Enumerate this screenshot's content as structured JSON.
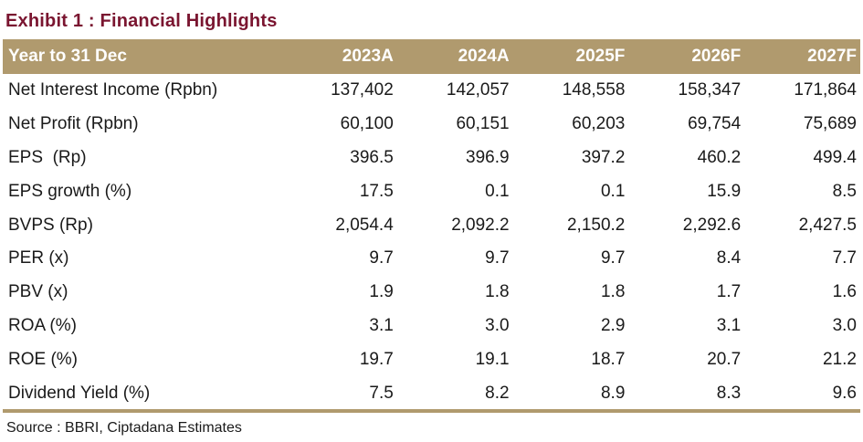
{
  "title": "Exhibit 1 : Financial Highlights",
  "table": {
    "header": [
      "Year to 31 Dec",
      "2023A",
      "2024A",
      "2025F",
      "2026F",
      "2027F"
    ],
    "rows": [
      [
        "Net Interest Income (Rpbn)",
        "137,402",
        "142,057",
        "148,558",
        "158,347",
        "171,864"
      ],
      [
        "Net Profit (Rpbn)",
        "60,100",
        "60,151",
        "60,203",
        "69,754",
        "75,689"
      ],
      [
        "EPS  (Rp)",
        "396.5",
        "396.9",
        "397.2",
        "460.2",
        "499.4"
      ],
      [
        "EPS growth (%)",
        "17.5",
        "0.1",
        "0.1",
        "15.9",
        "8.5"
      ],
      [
        "BVPS (Rp)",
        "2,054.4",
        "2,092.2",
        "2,150.2",
        "2,292.6",
        "2,427.5"
      ],
      [
        "PER (x)",
        "9.7",
        "9.7",
        "9.7",
        "8.4",
        "7.7"
      ],
      [
        "PBV (x)",
        "1.9",
        "1.8",
        "1.8",
        "1.7",
        "1.6"
      ],
      [
        "ROA (%)",
        "3.1",
        "3.0",
        "2.9",
        "3.1",
        "3.0"
      ],
      [
        "ROE (%)",
        "19.7",
        "19.1",
        "18.7",
        "20.7",
        "21.2"
      ],
      [
        "Dividend Yield (%)",
        "7.5",
        "8.2",
        "8.9",
        "8.3",
        "9.6"
      ]
    ]
  },
  "source": "Source : BBRI, Ciptadana Estimates",
  "colors": {
    "title": "#7a1530",
    "header_bg": "#b09a6e",
    "header_text": "#ffffff",
    "rule": "#b09a6e"
  }
}
